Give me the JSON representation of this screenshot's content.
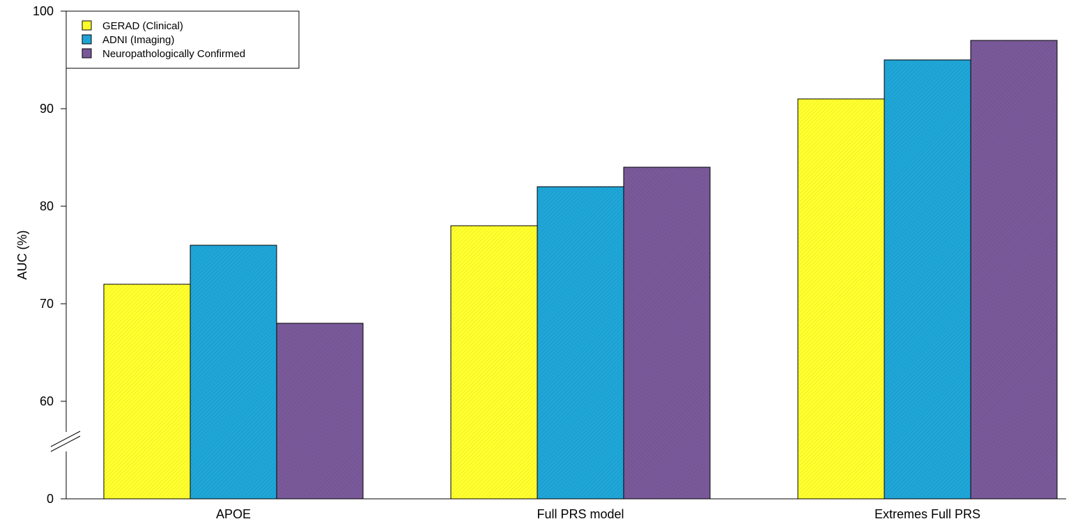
{
  "chart_data": {
    "type": "bar",
    "ylabel": "AUC (%)",
    "categories": [
      "APOE",
      "Full PRS model",
      "Extremes Full PRS"
    ],
    "series": [
      {
        "name": "GERAD (Clinical)",
        "values": [
          72,
          78,
          91
        ],
        "color": "#ffff33"
      },
      {
        "name": "ADNI (Imaging)",
        "values": [
          76,
          82,
          95
        ],
        "color": "#1fa7d8"
      },
      {
        "name": "Neuropathologically Confirmed",
        "values": [
          68,
          84,
          97
        ],
        "color": "#7a5a9a"
      }
    ],
    "yticks": [
      0,
      60,
      70,
      80,
      90,
      100
    ],
    "ylim": [
      55,
      100
    ],
    "axis_break": true,
    "legend_position": "top-left",
    "grid": false
  }
}
